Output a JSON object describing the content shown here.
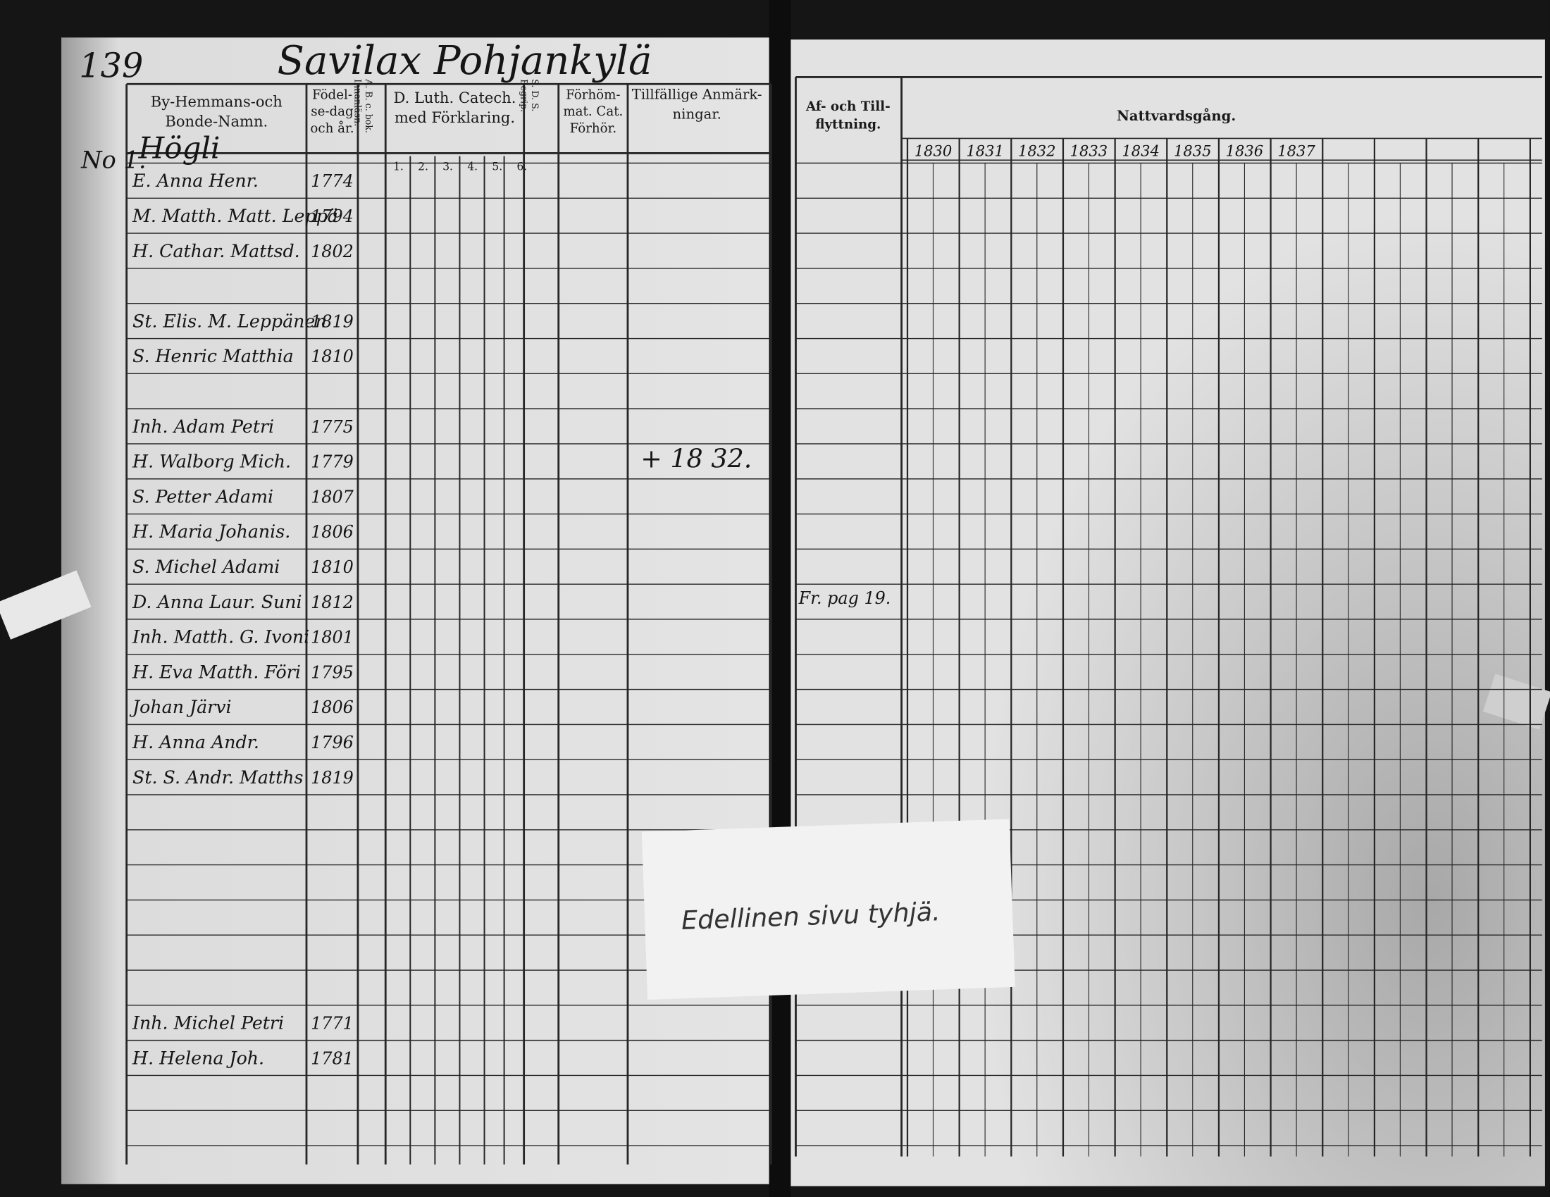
{
  "page_number": "139",
  "title": "Savilax Pohjankylä",
  "left_page": {
    "headers": {
      "name": [
        "By-Hemmans-och",
        "Bonde-Namn."
      ],
      "born": [
        "Födel-",
        "se-dag",
        "och år."
      ],
      "abc": [
        "A. B. c. bok.",
        "Innanläsn."
      ],
      "catechism": [
        "D. Luth. Catech.",
        "med Förklaring."
      ],
      "catechism_parts": [
        "1.",
        "2.",
        "3.",
        "4.",
        "5.",
        "6."
      ],
      "sds": [
        "S. D. S.",
        "Begrip."
      ],
      "exam": [
        "Förhöm-",
        "mat. Cat.",
        "Förhör."
      ],
      "remarks": [
        "Tillfällige Anmärk-",
        "ningar."
      ]
    },
    "household_number": "No 1.",
    "household": "Högli",
    "rows": [
      {
        "name": "E. Anna Henr.",
        "born": "1774"
      },
      {
        "name": "M. Matth. Matt. Leppä",
        "born": "1794"
      },
      {
        "name": "H. Cathar. Mattsd.",
        "born": "1802"
      },
      {
        "name": "St. Elis. M. Leppänen",
        "born": "1819"
      },
      {
        "name": "S. Henric Matthia",
        "born": "1810"
      },
      {
        "name": "Inh. Adam Petri",
        "born": "1775"
      },
      {
        "name": "H. Walborg Mich.",
        "born": "1779"
      },
      {
        "name": "S. Petter Adami",
        "born": "1807"
      },
      {
        "name": "H. Maria Johanis.",
        "born": "1806"
      },
      {
        "name": "S. Michel Adami",
        "born": "1810"
      },
      {
        "name": "D. Anna Laur. Suni",
        "born": "1812"
      },
      {
        "name": "Inh. Matth. G. Ivoni",
        "born": "1801"
      },
      {
        "name": "H. Eva Matth. Föri",
        "born": "1795"
      },
      {
        "name": "Johan Järvi",
        "born": "1806"
      },
      {
        "name": "H. Anna Andr.",
        "born": "1796"
      },
      {
        "name": "St. S. Andr. Matths",
        "born": "1819"
      },
      {
        "name": "Inh. Michel Petri",
        "born": "1771"
      },
      {
        "name": "H. Helena Joh.",
        "born": "1781"
      }
    ],
    "remark": "+ 18 32."
  },
  "right_page": {
    "headers": {
      "moves": [
        "Af- och Till-",
        "flyttning."
      ],
      "communion": "Nattvardsgång."
    },
    "years": [
      "1830",
      "1831",
      "1832",
      "1833",
      "1834",
      "1835",
      "1836",
      "1837"
    ],
    "move_note": "Fr. pag 19."
  },
  "note": "Edellinen sivu tyhjä."
}
